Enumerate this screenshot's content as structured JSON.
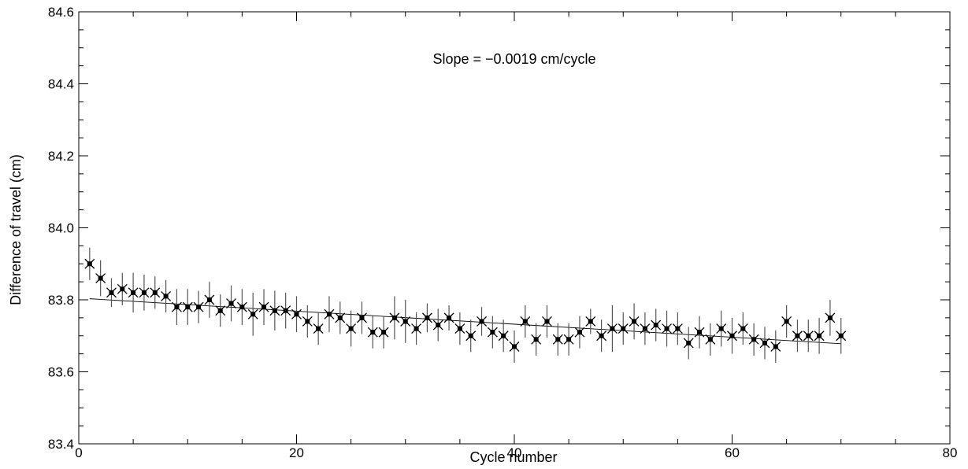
{
  "chart_data": {
    "type": "scatter",
    "title": "",
    "xlabel": "Cycle number",
    "ylabel": "Difference of travel   (cm)",
    "xlim": [
      0,
      80
    ],
    "ylim": [
      83.4,
      84.6
    ],
    "x_ticks": [
      0,
      20,
      40,
      60,
      80
    ],
    "x_tick_labels": [
      "0",
      "20",
      "40",
      "60",
      "80"
    ],
    "y_ticks": [
      83.4,
      83.6,
      83.8,
      84.0,
      84.2,
      84.4,
      84.6
    ],
    "y_tick_labels": [
      "83.4",
      "83.6",
      "83.8",
      "84.0",
      "84.2",
      "84.4",
      "84.6"
    ],
    "grid": false,
    "annotation": "Slope = −0.0019 cm/cycle",
    "series": [
      {
        "marker": "x",
        "x": [
          1,
          2,
          3,
          4,
          5,
          6,
          7,
          8,
          9,
          10,
          11,
          12,
          13,
          14,
          15,
          16,
          17,
          18,
          19,
          20,
          21,
          22,
          23,
          24,
          25,
          26,
          27,
          28,
          29,
          30,
          31,
          32,
          33,
          34,
          35,
          36,
          37,
          38,
          39,
          40,
          41,
          42,
          43,
          44,
          45,
          46,
          47,
          48,
          49,
          50,
          51,
          52,
          53,
          54,
          55,
          56,
          57,
          58,
          59,
          60,
          61,
          62,
          63,
          64,
          65,
          66,
          67,
          68,
          69,
          70
        ],
        "y": [
          83.9,
          83.86,
          83.82,
          83.83,
          83.82,
          83.82,
          83.82,
          83.81,
          83.78,
          83.78,
          83.78,
          83.8,
          83.77,
          83.79,
          83.78,
          83.76,
          83.78,
          83.77,
          83.77,
          83.76,
          83.74,
          83.72,
          83.76,
          83.75,
          83.72,
          83.75,
          83.71,
          83.71,
          83.75,
          83.74,
          83.72,
          83.75,
          83.73,
          83.75,
          83.72,
          83.7,
          83.74,
          83.71,
          83.7,
          83.67,
          83.74,
          83.69,
          83.74,
          83.69,
          83.69,
          83.71,
          83.74,
          83.7,
          83.72,
          83.72,
          83.74,
          83.72,
          83.73,
          83.72,
          83.72,
          83.68,
          83.71,
          83.69,
          83.72,
          83.7,
          83.72,
          83.69,
          83.68,
          83.67,
          83.74,
          83.7,
          83.7,
          83.7,
          83.75,
          83.7
        ],
        "error": [
          0.045,
          0.05,
          0.04,
          0.045,
          0.055,
          0.05,
          0.045,
          0.045,
          0.05,
          0.05,
          0.045,
          0.05,
          0.045,
          0.05,
          0.05,
          0.06,
          0.05,
          0.055,
          0.05,
          0.05,
          0.045,
          0.045,
          0.05,
          0.045,
          0.05,
          0.045,
          0.045,
          0.045,
          0.06,
          0.06,
          0.045,
          0.04,
          0.045,
          0.035,
          0.045,
          0.045,
          0.04,
          0.045,
          0.045,
          0.045,
          0.045,
          0.045,
          0.045,
          0.045,
          0.045,
          0.045,
          0.035,
          0.045,
          0.065,
          0.045,
          0.05,
          0.045,
          0.045,
          0.05,
          0.045,
          0.045,
          0.045,
          0.045,
          0.05,
          0.05,
          0.045,
          0.045,
          0.045,
          0.045,
          0.045,
          0.045,
          0.045,
          0.05,
          0.05,
          0.05
        ]
      }
    ],
    "fit_line": {
      "x": [
        1,
        70
      ],
      "y": [
        83.803,
        83.678
      ]
    }
  }
}
